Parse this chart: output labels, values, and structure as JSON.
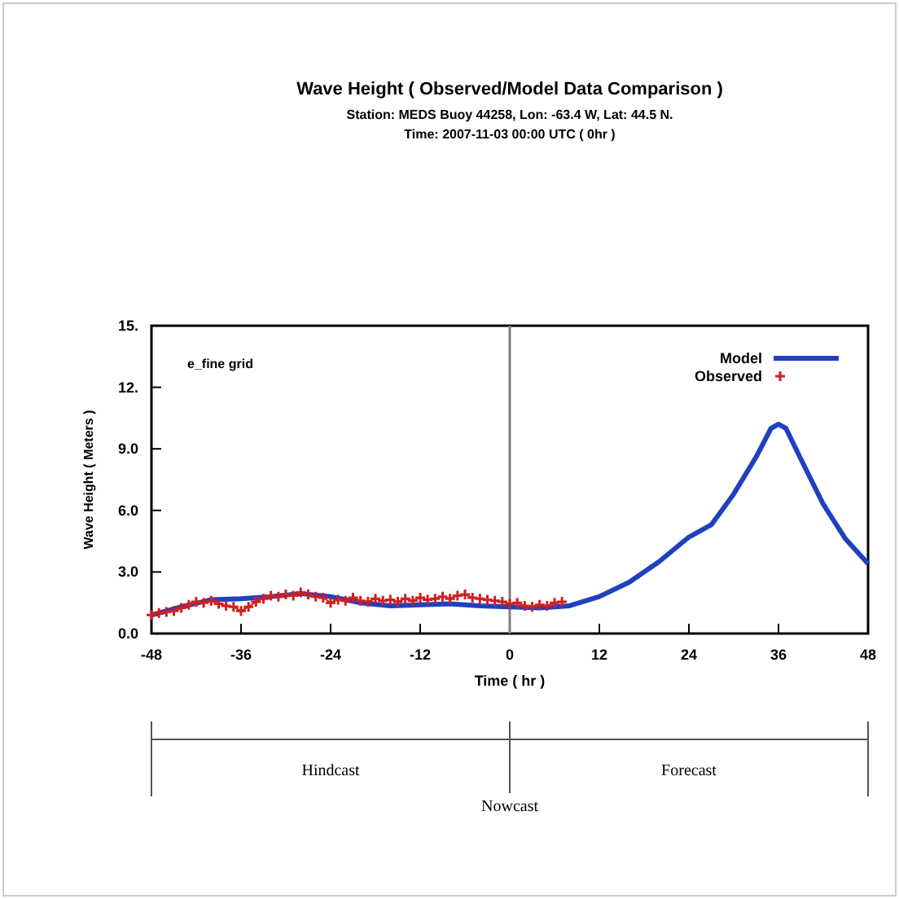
{
  "chart_data": {
    "type": "line",
    "title": "Wave Height ( Observed/Model Data Comparison )",
    "subtitle": "Station: MEDS Buoy 44258,  Lon: -63.4   W, Lat: 44.5   N.\nTime: 2007-11-03  00:00 UTC ( 0hr )",
    "xlabel": "Time ( hr )",
    "ylabel": "Wave Height ( Meters )",
    "annotations": [
      "e_fine grid",
      "Hindcast",
      "Nowcast",
      "Forecast"
    ],
    "xlim": [
      -48,
      48
    ],
    "xticks": [
      -48,
      -36,
      -24,
      -12,
      0,
      12,
      24,
      36,
      48
    ],
    "ylim": [
      0,
      15
    ],
    "yticks": [
      {
        "value": 0,
        "label": "0.0"
      },
      {
        "value": 3,
        "label": "3.0"
      },
      {
        "value": 6,
        "label": "6.0"
      },
      {
        "value": 9,
        "label": "9.0"
      },
      {
        "value": 12,
        "label": "12."
      },
      {
        "value": 15,
        "label": "15."
      }
    ],
    "grid": false,
    "legend": "top right",
    "ref_lines": [
      {
        "axis": "x",
        "value": 0,
        "color": "#808080"
      }
    ],
    "series": [
      {
        "name": "Model",
        "color": "#2040c0",
        "marker": "none",
        "x": [
          -48,
          -44,
          -40,
          -36,
          -32,
          -28,
          -24,
          -20,
          -16,
          -12,
          -8,
          -4,
          0,
          4,
          8,
          12,
          16,
          20,
          24,
          27,
          30,
          33,
          35,
          36,
          37,
          39,
          42,
          45,
          48
        ],
        "values": [
          0.9,
          1.3,
          1.65,
          1.7,
          1.8,
          1.95,
          1.8,
          1.5,
          1.35,
          1.4,
          1.45,
          1.35,
          1.3,
          1.25,
          1.35,
          1.8,
          2.5,
          3.5,
          4.7,
          5.3,
          6.8,
          8.6,
          10.0,
          10.2,
          10.0,
          8.5,
          6.3,
          4.6,
          3.4
        ]
      },
      {
        "name": "Observed",
        "color": "#d02020",
        "marker": "cross",
        "x": [
          -48,
          -47,
          -46,
          -45,
          -44,
          -43,
          -42,
          -41,
          -40,
          -39,
          -38,
          -37,
          -36,
          -35,
          -34,
          -33,
          -32,
          -31,
          -30,
          -29,
          -28,
          -27,
          -26,
          -25,
          -24,
          -23,
          -22,
          -21,
          -20,
          -19,
          -18,
          -17,
          -16,
          -15,
          -14,
          -13,
          -12,
          -11,
          -10,
          -9,
          -8,
          -7,
          -6,
          -5,
          -4,
          -3,
          -2,
          -1,
          0,
          1,
          2,
          3,
          4,
          5,
          6,
          7
        ],
        "values": [
          0.9,
          1.0,
          1.05,
          1.1,
          1.25,
          1.4,
          1.55,
          1.5,
          1.6,
          1.45,
          1.35,
          1.3,
          1.1,
          1.3,
          1.55,
          1.7,
          1.85,
          1.8,
          1.9,
          1.85,
          2.0,
          1.9,
          1.8,
          1.75,
          1.5,
          1.65,
          1.6,
          1.75,
          1.6,
          1.55,
          1.7,
          1.6,
          1.65,
          1.55,
          1.7,
          1.6,
          1.75,
          1.65,
          1.7,
          1.8,
          1.7,
          1.85,
          1.9,
          1.75,
          1.7,
          1.65,
          1.6,
          1.55,
          1.45,
          1.5,
          1.35,
          1.3,
          1.4,
          1.35,
          1.5,
          1.55
        ]
      }
    ]
  }
}
